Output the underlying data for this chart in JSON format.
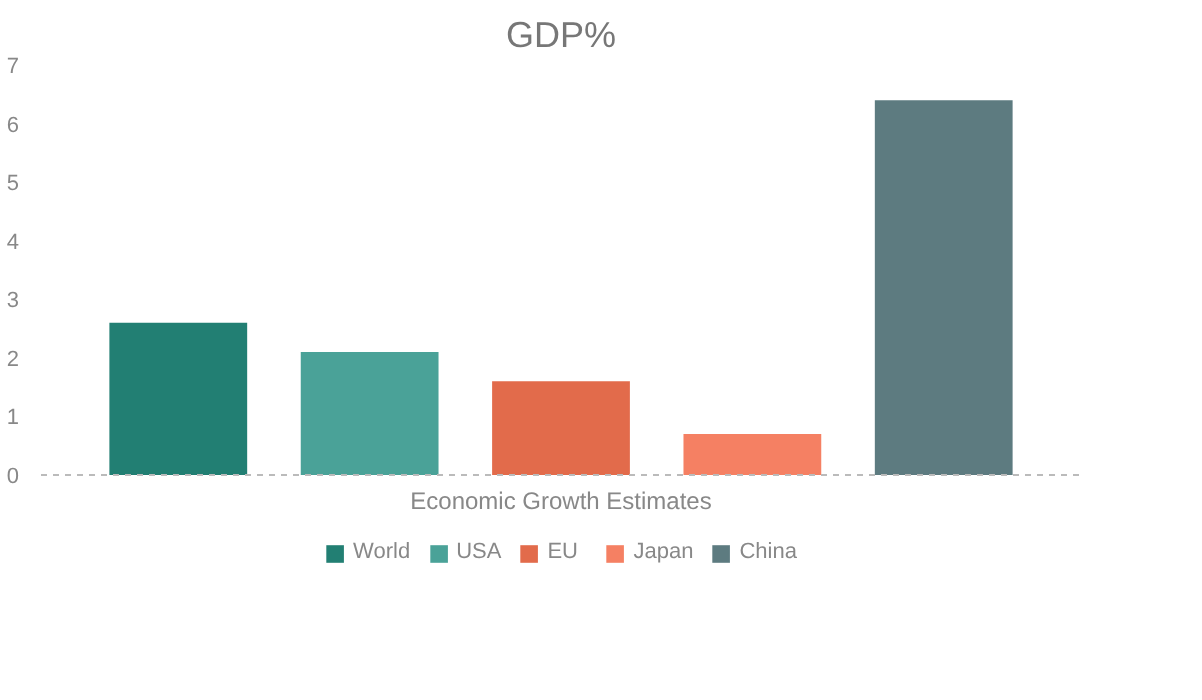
{
  "chart_data": {
    "type": "bar",
    "title": "GDP%",
    "xlabel": "Economic Growth Estimates",
    "categories": [
      null
    ],
    "series": [
      {
        "name": "World",
        "color": "#227f73",
        "values": [
          2.6
        ]
      },
      {
        "name": "USA",
        "color": "#4aa298",
        "values": [
          2.1
        ]
      },
      {
        "name": "EU",
        "color": "#e26b4b",
        "values": [
          1.6
        ]
      },
      {
        "name": "Japan",
        "color": "#f58063",
        "values": [
          0.7
        ]
      },
      {
        "name": "China",
        "color": "#5d7b80",
        "values": [
          6.4
        ]
      }
    ],
    "ylim": [
      0,
      7
    ],
    "yticks": [
      0,
      1,
      2,
      3,
      4,
      5,
      6,
      7
    ],
    "grid": false,
    "legend": "bottom"
  }
}
